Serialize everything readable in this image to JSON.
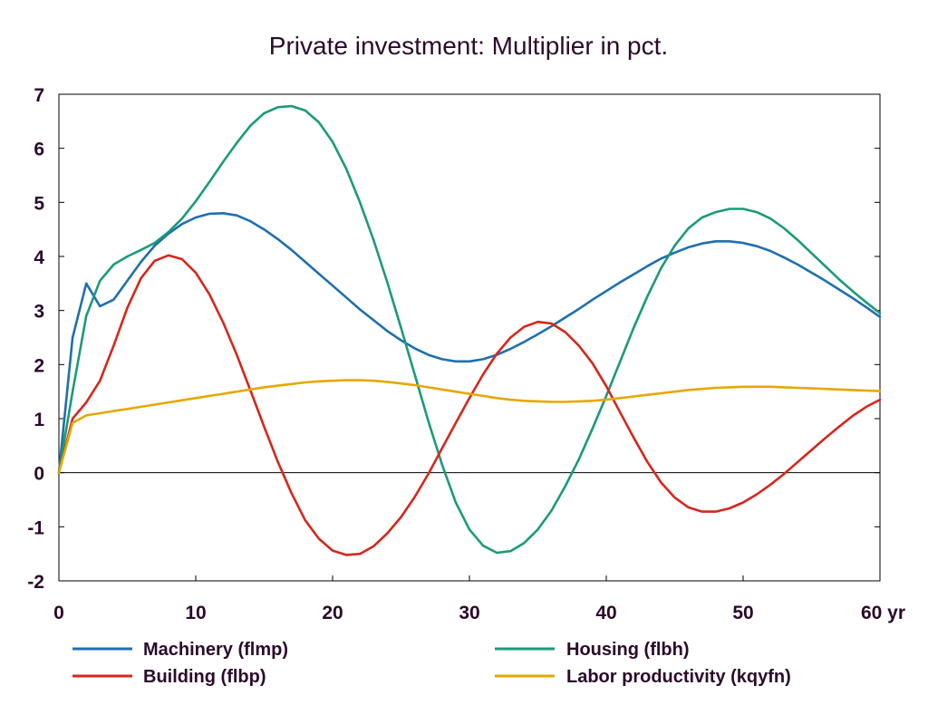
{
  "chart_data": {
    "type": "line",
    "title": "Private investment: Multiplier in pct.",
    "xlim": [
      0,
      60
    ],
    "ylim": [
      -2,
      7
    ],
    "x_ticks": [
      0,
      10,
      20,
      30,
      40,
      50,
      60
    ],
    "x_tick_labels": [
      "0",
      "10",
      "20",
      "30",
      "40",
      "50",
      "60 yr"
    ],
    "y_ticks": [
      -2,
      -1,
      0,
      1,
      2,
      3,
      4,
      5,
      6,
      7
    ],
    "y_tick_labels": [
      "-2",
      "-1",
      "0",
      "1",
      "2",
      "3",
      "4",
      "5",
      "6",
      "7"
    ],
    "grid": false,
    "legend_position": "bottom",
    "x": [
      0,
      1,
      2,
      3,
      4,
      5,
      6,
      7,
      8,
      9,
      10,
      11,
      12,
      13,
      14,
      15,
      16,
      17,
      18,
      19,
      20,
      21,
      22,
      23,
      24,
      25,
      26,
      27,
      28,
      29,
      30,
      31,
      32,
      33,
      34,
      35,
      36,
      37,
      38,
      39,
      40,
      41,
      42,
      43,
      44,
      45,
      46,
      47,
      48,
      49,
      50,
      51,
      52,
      53,
      54,
      55,
      56,
      57,
      58,
      59,
      60
    ],
    "series": [
      {
        "name": "Machinery (flmp)",
        "color": "#1f6fae",
        "values": [
          0,
          2.5,
          3.5,
          3.08,
          3.2,
          3.55,
          3.9,
          4.2,
          4.42,
          4.6,
          4.72,
          4.79,
          4.8,
          4.76,
          4.65,
          4.5,
          4.32,
          4.12,
          3.9,
          3.68,
          3.46,
          3.24,
          3.02,
          2.82,
          2.62,
          2.45,
          2.3,
          2.18,
          2.1,
          2.06,
          2.06,
          2.1,
          2.18,
          2.29,
          2.42,
          2.56,
          2.71,
          2.87,
          3.03,
          3.2,
          3.36,
          3.52,
          3.67,
          3.82,
          3.96,
          4.07,
          4.17,
          4.24,
          4.28,
          4.28,
          4.25,
          4.19,
          4.1,
          3.98,
          3.85,
          3.7,
          3.55,
          3.39,
          3.23,
          3.06,
          2.88
        ]
      },
      {
        "name": "Housing (flbh)",
        "color": "#1a9b78",
        "values": [
          0,
          1.5,
          2.9,
          3.55,
          3.85,
          4.0,
          4.12,
          4.25,
          4.45,
          4.7,
          5.02,
          5.38,
          5.75,
          6.1,
          6.42,
          6.65,
          6.76,
          6.78,
          6.7,
          6.48,
          6.12,
          5.62,
          5.0,
          4.3,
          3.52,
          2.68,
          1.82,
          0.95,
          0.15,
          -0.55,
          -1.05,
          -1.35,
          -1.48,
          -1.45,
          -1.3,
          -1.05,
          -0.7,
          -0.25,
          0.25,
          0.82,
          1.42,
          2.05,
          2.68,
          3.26,
          3.78,
          4.2,
          4.52,
          4.72,
          4.82,
          4.88,
          4.88,
          4.82,
          4.7,
          4.52,
          4.3,
          4.06,
          3.82,
          3.58,
          3.36,
          3.15,
          2.95
        ]
      },
      {
        "name": "Building (flbp)",
        "color": "#d7261c",
        "values": [
          0,
          1.0,
          1.3,
          1.7,
          2.35,
          3.05,
          3.6,
          3.92,
          4.02,
          3.95,
          3.7,
          3.3,
          2.78,
          2.18,
          1.52,
          0.85,
          0.2,
          -0.38,
          -0.88,
          -1.22,
          -1.44,
          -1.52,
          -1.5,
          -1.36,
          -1.12,
          -0.82,
          -0.45,
          -0.02,
          0.45,
          0.92,
          1.38,
          1.82,
          2.2,
          2.5,
          2.7,
          2.79,
          2.76,
          2.6,
          2.35,
          2.02,
          1.6,
          1.12,
          0.65,
          0.2,
          -0.18,
          -0.46,
          -0.64,
          -0.72,
          -0.72,
          -0.66,
          -0.55,
          -0.4,
          -0.22,
          -0.02,
          0.2,
          0.42,
          0.64,
          0.85,
          1.05,
          1.22,
          1.35
        ]
      },
      {
        "name": "Labor productivity (kqyfn)",
        "color": "#e6a700",
        "values": [
          0,
          0.92,
          1.06,
          1.1,
          1.14,
          1.18,
          1.22,
          1.26,
          1.3,
          1.34,
          1.38,
          1.42,
          1.46,
          1.5,
          1.54,
          1.58,
          1.61,
          1.64,
          1.67,
          1.69,
          1.7,
          1.71,
          1.71,
          1.7,
          1.68,
          1.65,
          1.62,
          1.58,
          1.54,
          1.5,
          1.46,
          1.42,
          1.38,
          1.35,
          1.33,
          1.32,
          1.31,
          1.31,
          1.32,
          1.33,
          1.35,
          1.38,
          1.41,
          1.44,
          1.47,
          1.5,
          1.53,
          1.55,
          1.57,
          1.58,
          1.59,
          1.59,
          1.59,
          1.58,
          1.57,
          1.56,
          1.55,
          1.54,
          1.53,
          1.52,
          1.51
        ]
      }
    ]
  }
}
